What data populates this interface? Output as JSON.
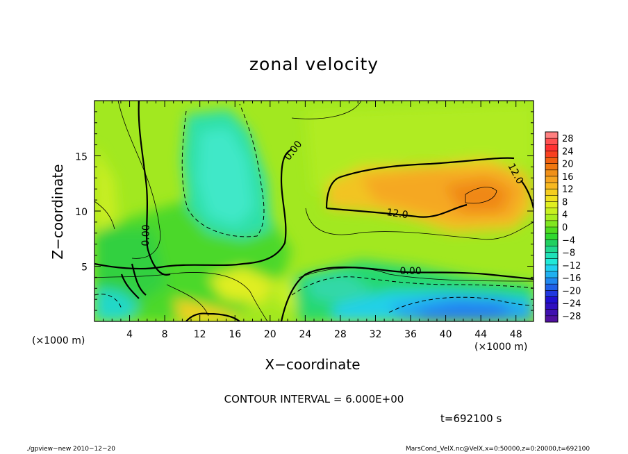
{
  "chart_data": {
    "type": "heatmap",
    "title": "zonal velocity",
    "xlabel": "X−coordinate",
    "ylabel": "Z−coordinate",
    "x_unit_left": "(×1000 m)",
    "x_unit_right": "(×1000 m)",
    "xlim": [
      0,
      50
    ],
    "ylim": [
      0,
      20
    ],
    "x_ticks": [
      4,
      8,
      12,
      16,
      20,
      24,
      28,
      32,
      36,
      40,
      44,
      48
    ],
    "y_ticks": [
      5,
      10,
      15
    ],
    "colorbar": {
      "labels": [
        "28",
        "24",
        "20",
        "16",
        "12",
        "8",
        "4",
        "0",
        "−4",
        "−8",
        "−12",
        "−16",
        "−20",
        "−24",
        "−28"
      ],
      "levels": [
        30,
        28,
        26,
        24,
        22,
        20,
        18,
        16,
        14,
        12,
        10,
        8,
        6,
        4,
        2,
        0,
        -2,
        -4,
        -6,
        -8,
        -10,
        -12,
        -14,
        -16,
        -18,
        -20,
        -22,
        -24,
        -26,
        -28,
        -30
      ],
      "colors": [
        "#ff8080",
        "#ff5050",
        "#ff3030",
        "#f84020",
        "#f06010",
        "#f07810",
        "#f09018",
        "#f5a520",
        "#f7b820",
        "#f5cd20",
        "#f0e020",
        "#e0ef20",
        "#c8f020",
        "#a8ee20",
        "#80e620",
        "#50dc20",
        "#30d830",
        "#20d060",
        "#20d890",
        "#20e0b8",
        "#20e8d8",
        "#20d0f0",
        "#20b0f0",
        "#2088f0",
        "#2060e8",
        "#2038e0",
        "#2010d0",
        "#3010c0",
        "#4010b0",
        "#5010a0"
      ]
    },
    "contour_labels": [
      {
        "text": "0.00",
        "x": 22.6,
        "z": 15.5,
        "angle": -52
      },
      {
        "text": "12.0",
        "x": 34.5,
        "z": 9.8,
        "angle": 8
      },
      {
        "text": "12.0",
        "x": 48.0,
        "z": 13.4,
        "angle": 62
      },
      {
        "text": "0.00",
        "x": 36.0,
        "z": 4.6,
        "angle": 0
      },
      {
        "text": "0.00",
        "x": 5.8,
        "z": 7.8,
        "angle": -88
      }
    ],
    "regions": [
      {
        "name": "upper-left-cyan",
        "x": [
          12,
          19
        ],
        "z": [
          8,
          19
        ],
        "value": -8
      },
      {
        "name": "right-orange-core",
        "x": [
          38,
          50
        ],
        "z": [
          9,
          14
        ],
        "value": 16
      },
      {
        "name": "bottom-right-blue",
        "x": [
          38,
          50
        ],
        "z": [
          0,
          2.5
        ],
        "value": -16
      }
    ],
    "contour_interval_text": "CONTOUR INTERVAL = 6.000E+00",
    "time_text": "t=692100 s"
  },
  "footer": {
    "left": "./gpview−new  2010−12−20",
    "right": "MarsCond_VelX.nc@VelX,x=0:50000,z=0:20000,t=692100"
  }
}
